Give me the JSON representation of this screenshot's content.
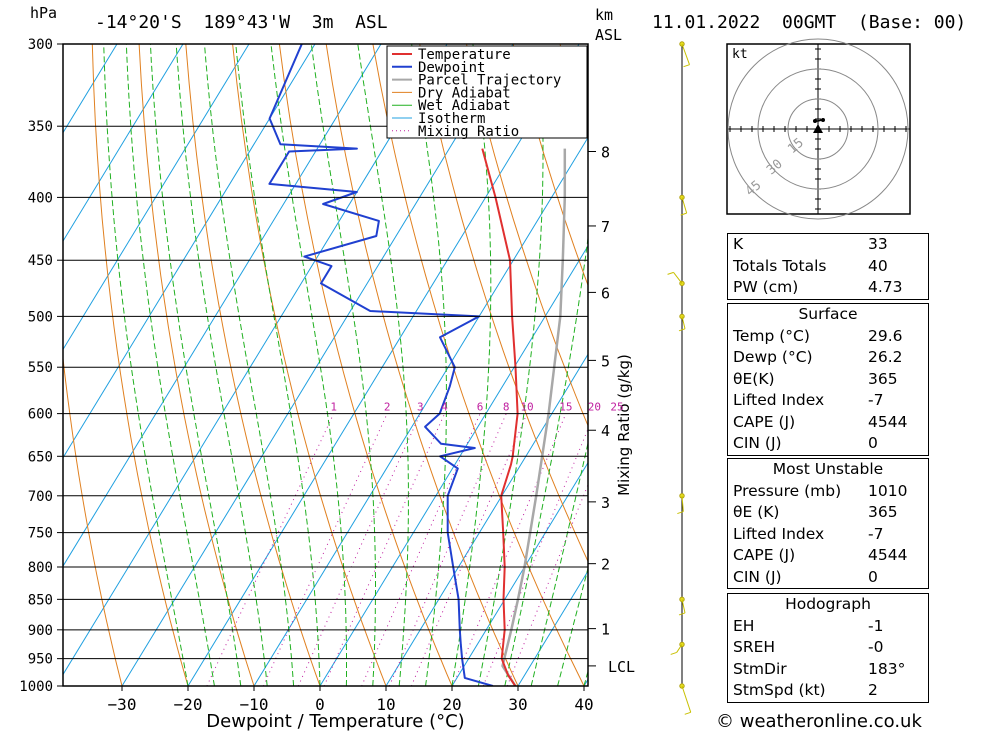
{
  "header": {
    "units_hpa": "hPa",
    "location": "-14°20'S  189°43'W  3m  ASL",
    "units_km": "km",
    "units_asl": "ASL",
    "datetime": "11.01.2022  00GMT  (Base: 00)"
  },
  "credit": "© weatheronline.co.uk",
  "chart_data": {
    "type": "skew-t log-p",
    "xlabel": "Dewpoint / Temperature (°C)",
    "ylabel_right": "Mixing Ratio (g/kg)",
    "pressure_ticks": [
      300,
      350,
      400,
      450,
      500,
      550,
      600,
      650,
      700,
      750,
      800,
      850,
      900,
      950,
      1000
    ],
    "temp_ticks": [
      -30,
      -20,
      -10,
      0,
      10,
      20,
      30,
      40
    ],
    "km_ticks": [
      {
        "label": "8",
        "p": 367
      },
      {
        "label": "7",
        "p": 422
      },
      {
        "label": "6",
        "p": 478
      },
      {
        "label": "5",
        "p": 543
      },
      {
        "label": "4",
        "p": 619
      },
      {
        "label": "3",
        "p": 708
      },
      {
        "label": "2",
        "p": 795
      },
      {
        "label": "1",
        "p": 898
      },
      {
        "label": "LCL",
        "p": 963
      }
    ],
    "mixing_ratio_labels": [
      "1",
      "2",
      "3",
      "4",
      "6",
      "8",
      "10",
      "15",
      "20",
      "25"
    ],
    "legend": [
      "Temperature",
      "Dewpoint",
      "Parcel Trajectory",
      "Dry Adiabat",
      "Wet Adiabat",
      "Isotherm",
      "Mixing Ratio"
    ],
    "colors": {
      "temperature": "#e03030",
      "dewpoint": "#2040d0",
      "parcel": "#a8a8a8",
      "dry_adiabat": "#e08020",
      "wet_adiabat": "#20b020",
      "isotherm": "#20a0e0",
      "mixing_ratio": "#c020a0"
    },
    "temperature": [
      {
        "p": 1000,
        "t": 29.6
      },
      {
        "p": 980,
        "t": 27.5
      },
      {
        "p": 950,
        "t": 25.0
      },
      {
        "p": 900,
        "t": 22.8
      },
      {
        "p": 850,
        "t": 19.8
      },
      {
        "p": 800,
        "t": 17.0
      },
      {
        "p": 750,
        "t": 13.6
      },
      {
        "p": 700,
        "t": 9.9
      },
      {
        "p": 660,
        "t": 8.5
      },
      {
        "p": 650,
        "t": 8.0
      },
      {
        "p": 600,
        "t": 4.8
      },
      {
        "p": 550,
        "t": 0.2
      },
      {
        "p": 500,
        "t": -5.0
      },
      {
        "p": 450,
        "t": -10.5
      },
      {
        "p": 400,
        "t": -18.5
      },
      {
        "p": 365,
        "t": -25.0
      }
    ],
    "dewpoint": [
      {
        "p": 1000,
        "t": 26.2
      },
      {
        "p": 985,
        "t": 21.2
      },
      {
        "p": 950,
        "t": 19.0
      },
      {
        "p": 925,
        "t": 17.5
      },
      {
        "p": 900,
        "t": 16.0
      },
      {
        "p": 850,
        "t": 13.0
      },
      {
        "p": 800,
        "t": 9.2
      },
      {
        "p": 750,
        "t": 5.2
      },
      {
        "p": 700,
        "t": 1.8
      },
      {
        "p": 665,
        "t": 0.8
      },
      {
        "p": 650,
        "t": -3.0
      },
      {
        "p": 640,
        "t": 1.5
      },
      {
        "p": 635,
        "t": -4.0
      },
      {
        "p": 615,
        "t": -8.0
      },
      {
        "p": 600,
        "t": -7.0
      },
      {
        "p": 570,
        "t": -8.0
      },
      {
        "p": 550,
        "t": -9.0
      },
      {
        "p": 520,
        "t": -14.0
      },
      {
        "p": 500,
        "t": -10.0
      },
      {
        "p": 495,
        "t": -27.0
      },
      {
        "p": 470,
        "t": -37.0
      },
      {
        "p": 455,
        "t": -37.0
      },
      {
        "p": 447,
        "t": -42.0
      },
      {
        "p": 430,
        "t": -33.0
      },
      {
        "p": 418,
        "t": -34.0
      },
      {
        "p": 405,
        "t": -44.0
      },
      {
        "p": 396,
        "t": -40.0
      },
      {
        "p": 390,
        "t": -54.0
      },
      {
        "p": 367,
        "t": -54.0
      },
      {
        "p": 365,
        "t": -44.0
      },
      {
        "p": 362,
        "t": -56.0
      },
      {
        "p": 345,
        "t": -60.0
      },
      {
        "p": 300,
        "t": -62.0
      }
    ],
    "parcel": [
      {
        "p": 1000,
        "t": 29.6
      },
      {
        "p": 963,
        "t": 25.8
      },
      {
        "p": 900,
        "t": 23.8
      },
      {
        "p": 850,
        "t": 22.0
      },
      {
        "p": 800,
        "t": 20.0
      },
      {
        "p": 700,
        "t": 15.2
      },
      {
        "p": 600,
        "t": 9.5
      },
      {
        "p": 500,
        "t": 2.3
      },
      {
        "p": 450,
        "t": -2.5
      },
      {
        "p": 400,
        "t": -8.0
      },
      {
        "p": 365,
        "t": -12.5
      }
    ],
    "wind_profile": [
      {
        "p": 300,
        "dir": 200,
        "spd": 10
      },
      {
        "p": 400,
        "dir": 190,
        "spd": 5
      },
      {
        "p": 470,
        "dir": 60,
        "spd": 10
      },
      {
        "p": 500,
        "dir": 180,
        "spd": 2
      },
      {
        "p": 700,
        "dir": 170,
        "spd": 5
      },
      {
        "p": 850,
        "dir": 180,
        "spd": 3
      },
      {
        "p": 925,
        "dir": 120,
        "spd": 5
      },
      {
        "p": 1000,
        "dir": 200,
        "spd": 15
      }
    ]
  },
  "hodograph": {
    "unit": "kt",
    "ring_labels": [
      "15",
      "30",
      "45"
    ]
  },
  "indices": {
    "k": {
      "label": "K",
      "value": "33"
    },
    "tt": {
      "label": "Totals Totals",
      "value": "40"
    },
    "pw": {
      "label": "PW (cm)",
      "value": "4.73"
    },
    "surface": {
      "title": "Surface",
      "rows": [
        {
          "label": "Temp (°C)",
          "value": "29.6"
        },
        {
          "label": "Dewp (°C)",
          "value": "26.2"
        },
        {
          "label": "θE(K)",
          "value": "365"
        },
        {
          "label": "Lifted Index",
          "value": "-7"
        },
        {
          "label": "CAPE (J)",
          "value": "4544"
        },
        {
          "label": "CIN (J)",
          "value": "0"
        }
      ]
    },
    "most_unstable": {
      "title": "Most Unstable",
      "rows": [
        {
          "label": "Pressure (mb)",
          "value": "1010"
        },
        {
          "label": "θE (K)",
          "value": "365"
        },
        {
          "label": "Lifted Index",
          "value": "-7"
        },
        {
          "label": "CAPE (J)",
          "value": "4544"
        },
        {
          "label": "CIN (J)",
          "value": "0"
        }
      ]
    },
    "hodograph_box": {
      "title": "Hodograph",
      "rows": [
        {
          "label": "EH",
          "value": "-1"
        },
        {
          "label": "SREH",
          "value": "-0"
        },
        {
          "label": "StmDir",
          "value": "183°"
        },
        {
          "label": "StmSpd (kt)",
          "value": "2"
        }
      ]
    }
  }
}
